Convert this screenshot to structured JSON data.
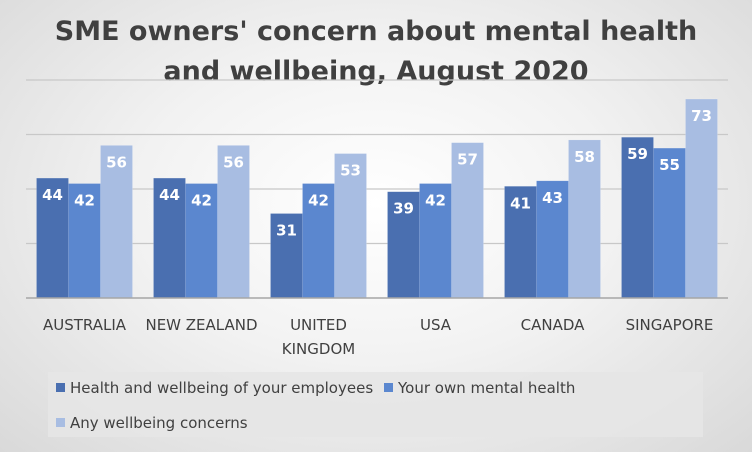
{
  "chart_data": {
    "type": "bar",
    "title": "SME owners' concern about mental health and wellbeing, August 2020",
    "title_lines": [
      "SME owners' concern about mental health",
      "and wellbeing, August 2020"
    ],
    "categories": [
      "AUSTRALIA",
      "NEW ZEALAND",
      "UNITED KINGDOM",
      "USA",
      "CANADA",
      "SINGAPORE"
    ],
    "category_label_lines": [
      [
        "AUSTRALIA"
      ],
      [
        "NEW ZEALAND"
      ],
      [
        "UNITED",
        "KINGDOM"
      ],
      [
        "USA"
      ],
      [
        "CANADA"
      ],
      [
        "SINGAPORE"
      ]
    ],
    "series": [
      {
        "name": "Health and wellbeing of your employees",
        "values": [
          44,
          44,
          31,
          39,
          41,
          59
        ],
        "color": "#4a6fb0"
      },
      {
        "name": "Your own mental health",
        "values": [
          42,
          42,
          42,
          42,
          43,
          55
        ],
        "color": "#5b87cf"
      },
      {
        "name": "Any wellbeing concerns",
        "values": [
          56,
          56,
          53,
          57,
          58,
          73
        ],
        "color": "#a8bde2"
      }
    ],
    "xlabel": "",
    "ylabel": "",
    "ylim": [
      0,
      80
    ],
    "gridlines_at": [
      20,
      40,
      60,
      80
    ],
    "y_tick_labels_shown": false,
    "data_labels": true,
    "grid": true,
    "legend_position": "bottom"
  }
}
